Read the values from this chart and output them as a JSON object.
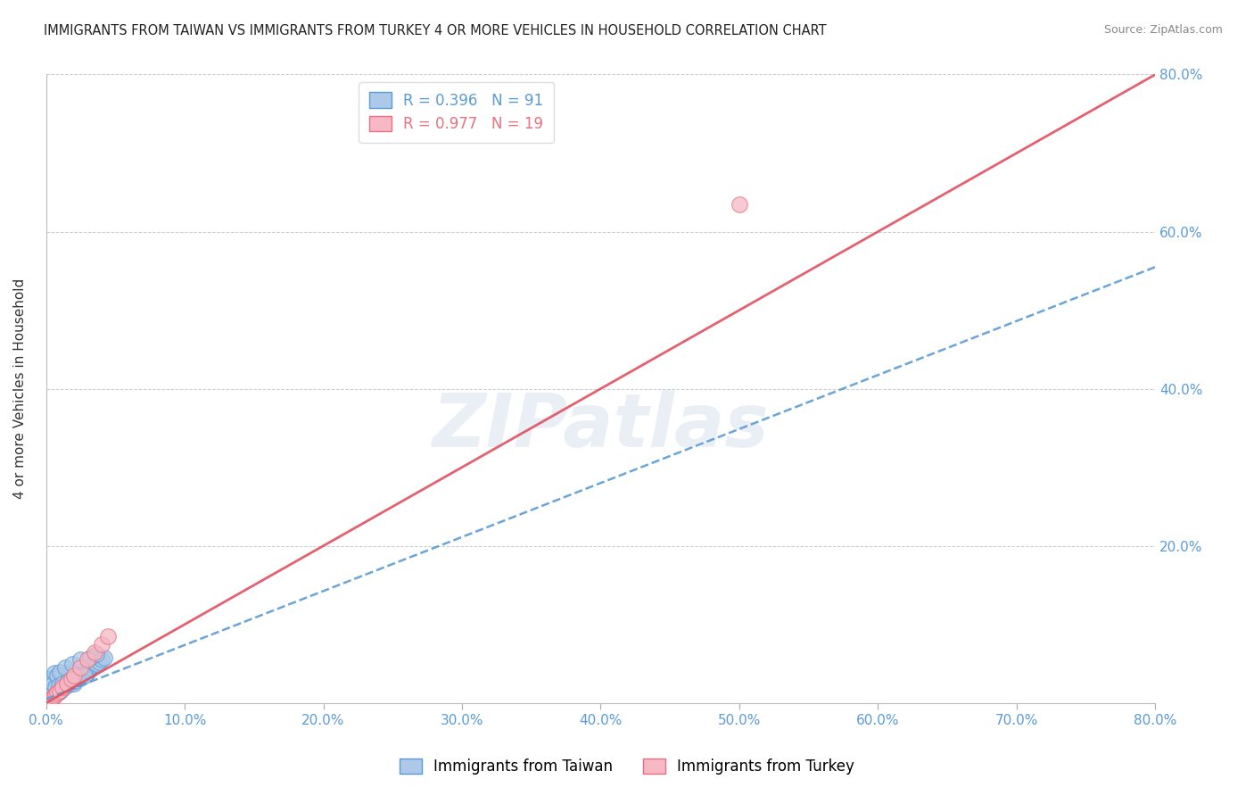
{
  "title": "IMMIGRANTS FROM TAIWAN VS IMMIGRANTS FROM TURKEY 4 OR MORE VEHICLES IN HOUSEHOLD CORRELATION CHART",
  "source": "Source: ZipAtlas.com",
  "ylabel": "4 or more Vehicles in Household",
  "xlim": [
    0.0,
    0.8
  ],
  "ylim": [
    0.0,
    0.8
  ],
  "xticks": [
    0.0,
    0.1,
    0.2,
    0.3,
    0.4,
    0.5,
    0.6,
    0.7,
    0.8
  ],
  "yticks": [
    0.0,
    0.2,
    0.4,
    0.6,
    0.8
  ],
  "xticklabels": [
    "0.0%",
    "10.0%",
    "20.0%",
    "30.0%",
    "40.0%",
    "50.0%",
    "60.0%",
    "70.0%",
    "80.0%"
  ],
  "yticklabels_right": [
    "20.0%",
    "40.0%",
    "60.0%",
    "80.0%"
  ],
  "taiwan_color": "#adc8e8",
  "turkey_color": "#f5b8c4",
  "taiwan_edge_color": "#5b9bd5",
  "turkey_edge_color": "#e87080",
  "taiwan_line_color": "#5b9bd5",
  "turkey_line_color": "#e05060",
  "taiwan_R": 0.396,
  "taiwan_N": 91,
  "turkey_R": 0.977,
  "turkey_N": 19,
  "legend_taiwan_label": "Immigrants from Taiwan",
  "legend_turkey_label": "Immigrants from Turkey",
  "watermark": "ZIPatlas",
  "taiwan_scatter_x": [
    0.001,
    0.002,
    0.002,
    0.003,
    0.003,
    0.003,
    0.004,
    0.004,
    0.004,
    0.005,
    0.005,
    0.005,
    0.005,
    0.006,
    0.006,
    0.006,
    0.007,
    0.007,
    0.007,
    0.008,
    0.008,
    0.008,
    0.009,
    0.009,
    0.009,
    0.01,
    0.01,
    0.01,
    0.01,
    0.011,
    0.011,
    0.011,
    0.012,
    0.012,
    0.012,
    0.013,
    0.013,
    0.014,
    0.014,
    0.015,
    0.015,
    0.015,
    0.016,
    0.016,
    0.017,
    0.017,
    0.018,
    0.018,
    0.019,
    0.019,
    0.02,
    0.02,
    0.021,
    0.021,
    0.022,
    0.023,
    0.024,
    0.025,
    0.026,
    0.027,
    0.028,
    0.029,
    0.03,
    0.031,
    0.032,
    0.034,
    0.036,
    0.038,
    0.04,
    0.042,
    0.001,
    0.002,
    0.003,
    0.003,
    0.004,
    0.004,
    0.005,
    0.006,
    0.007,
    0.008,
    0.009,
    0.01,
    0.012,
    0.014,
    0.016,
    0.019,
    0.022,
    0.025,
    0.028,
    0.032,
    0.036
  ],
  "taiwan_scatter_y": [
    0.01,
    0.005,
    0.015,
    0.008,
    0.012,
    0.02,
    0.008,
    0.015,
    0.022,
    0.01,
    0.015,
    0.022,
    0.03,
    0.012,
    0.018,
    0.025,
    0.015,
    0.022,
    0.03,
    0.012,
    0.018,
    0.028,
    0.015,
    0.022,
    0.032,
    0.015,
    0.02,
    0.025,
    0.035,
    0.018,
    0.025,
    0.035,
    0.018,
    0.025,
    0.035,
    0.022,
    0.03,
    0.025,
    0.035,
    0.022,
    0.028,
    0.038,
    0.025,
    0.035,
    0.025,
    0.035,
    0.025,
    0.035,
    0.028,
    0.038,
    0.025,
    0.035,
    0.028,
    0.038,
    0.032,
    0.035,
    0.038,
    0.032,
    0.038,
    0.04,
    0.04,
    0.042,
    0.038,
    0.042,
    0.045,
    0.048,
    0.05,
    0.052,
    0.055,
    0.058,
    0.028,
    0.012,
    0.025,
    0.008,
    0.018,
    0.032,
    0.025,
    0.038,
    0.02,
    0.035,
    0.022,
    0.04,
    0.025,
    0.045,
    0.028,
    0.05,
    0.032,
    0.055,
    0.035,
    0.058,
    0.062
  ],
  "turkey_scatter_x": [
    0.001,
    0.002,
    0.003,
    0.004,
    0.005,
    0.006,
    0.007,
    0.008,
    0.01,
    0.012,
    0.015,
    0.018,
    0.02,
    0.025,
    0.03,
    0.035,
    0.04,
    0.045,
    0.5
  ],
  "turkey_scatter_y": [
    0.001,
    0.003,
    0.004,
    0.005,
    0.007,
    0.009,
    0.011,
    0.013,
    0.016,
    0.02,
    0.025,
    0.03,
    0.035,
    0.045,
    0.055,
    0.065,
    0.075,
    0.085,
    0.635
  ],
  "taiwan_regress_x0": 0.0,
  "taiwan_regress_y0": 0.005,
  "taiwan_regress_x1": 0.8,
  "taiwan_regress_y1": 0.555,
  "turkey_regress_x0": 0.0,
  "turkey_regress_y0": 0.0,
  "turkey_regress_x1": 0.8,
  "turkey_regress_y1": 0.8
}
